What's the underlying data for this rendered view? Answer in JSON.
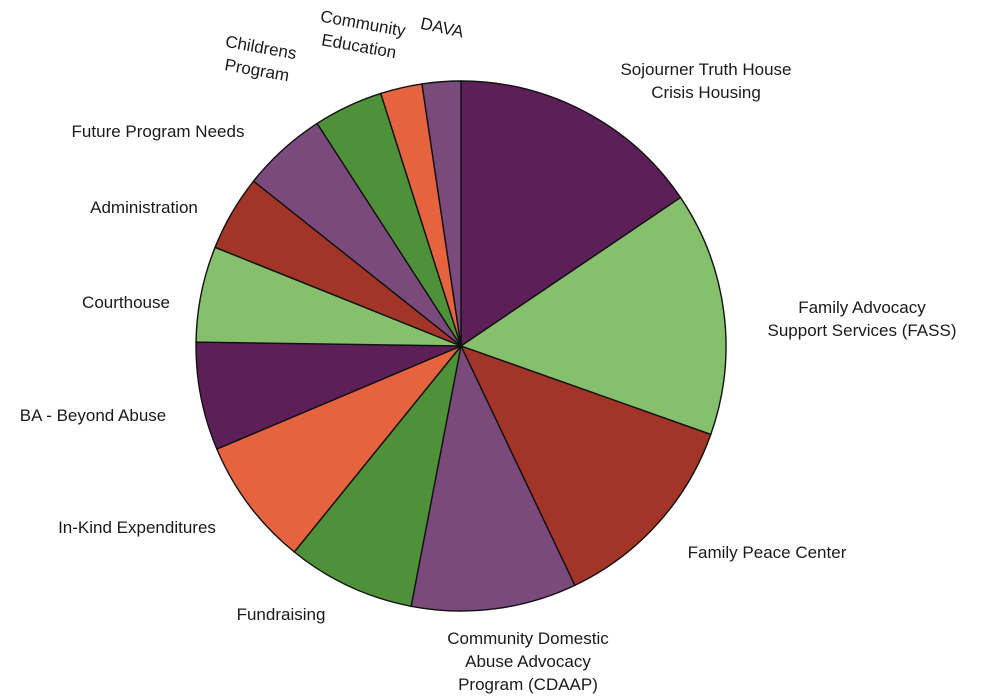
{
  "chart_data": {
    "type": "pie",
    "title": "",
    "legend": "none",
    "slices": [
      {
        "label": "Sojourner Truth House Crisis Housing",
        "value": 16.5,
        "color": "#5c1f57"
      },
      {
        "label": "Family Advocacy Support Services (FASS)",
        "value": 15.8,
        "color": "#86c06c"
      },
      {
        "label": "Family Peace Center",
        "value": 13.3,
        "color": "#a23528"
      },
      {
        "label": "Community Domestic Abuse Advocacy Program (CDAAP)",
        "value": 10.7,
        "color": "#7b4a7d"
      },
      {
        "label": "Fundraising",
        "value": 8.3,
        "color": "#4f9138"
      },
      {
        "label": "In-Kind Expenditures",
        "value": 8.3,
        "color": "#e5643f"
      },
      {
        "label": "BA - Beyond Abuse",
        "value": 7.0,
        "color": "#5c1f57"
      },
      {
        "label": "Courthouse",
        "value": 6.2,
        "color": "#86c06c"
      },
      {
        "label": "Administration",
        "value": 4.9,
        "color": "#a23528"
      },
      {
        "label": "Future Program Needs",
        "value": 5.5,
        "color": "#7b4a7d"
      },
      {
        "label": "Childrens Program",
        "value": 4.5,
        "color": "#4f9138"
      },
      {
        "label": "Community Education",
        "value": 2.7,
        "color": "#e5643f"
      },
      {
        "label": "DAVA",
        "value": 2.5,
        "color": "#7b4a7d"
      }
    ]
  }
}
